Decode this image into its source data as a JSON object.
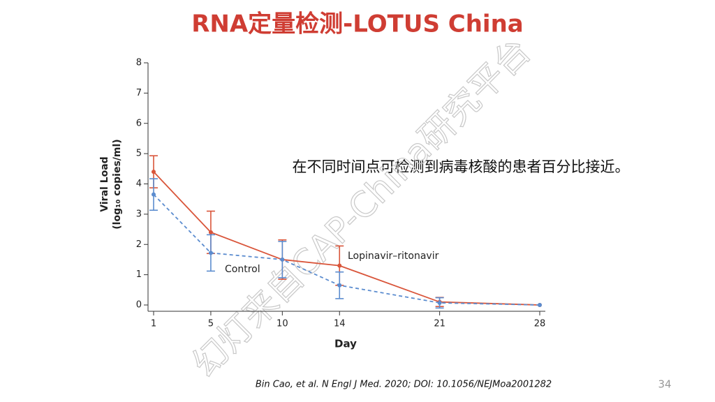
{
  "chart_data": {
    "type": "line",
    "title": "RNA定量检测-LOTUS China",
    "x_label": "Day",
    "y_label": [
      "Viral Load",
      "(log₁₀ copies/ml)"
    ],
    "annotation": "在不同时间点可检测到病毒核酸的患者百分比接近。",
    "x": [
      1,
      5,
      10,
      14,
      21,
      28
    ],
    "xlim": [
      1,
      28
    ],
    "xticks": [
      1,
      5,
      10,
      14,
      21,
      28
    ],
    "ylim": [
      0,
      8
    ],
    "yticks": [
      0,
      1,
      2,
      3,
      4,
      5,
      6,
      7,
      8
    ],
    "series": [
      {
        "name": "Lopinavir–ritonavir",
        "color": "#d9553a",
        "dash": false,
        "values": [
          4.4,
          2.4,
          1.5,
          1.3,
          0.1,
          0.0
        ],
        "errors": [
          0.53,
          0.7,
          0.65,
          0.65,
          0.15,
          0.0
        ]
      },
      {
        "name": "Control",
        "color": "#5b8ccf",
        "dash": true,
        "values": [
          3.65,
          1.72,
          1.5,
          0.65,
          0.07,
          0.0
        ],
        "errors": [
          0.52,
          0.6,
          0.6,
          0.44,
          0.17,
          0.0
        ]
      }
    ]
  },
  "slide": {
    "citation": "Bin Cao, et al. N Engl J Med. 2020; DOI: 10.1056/NEJMoa2001282",
    "page_number": "34",
    "watermark": "幻灯来自CAP-China研究平台"
  }
}
